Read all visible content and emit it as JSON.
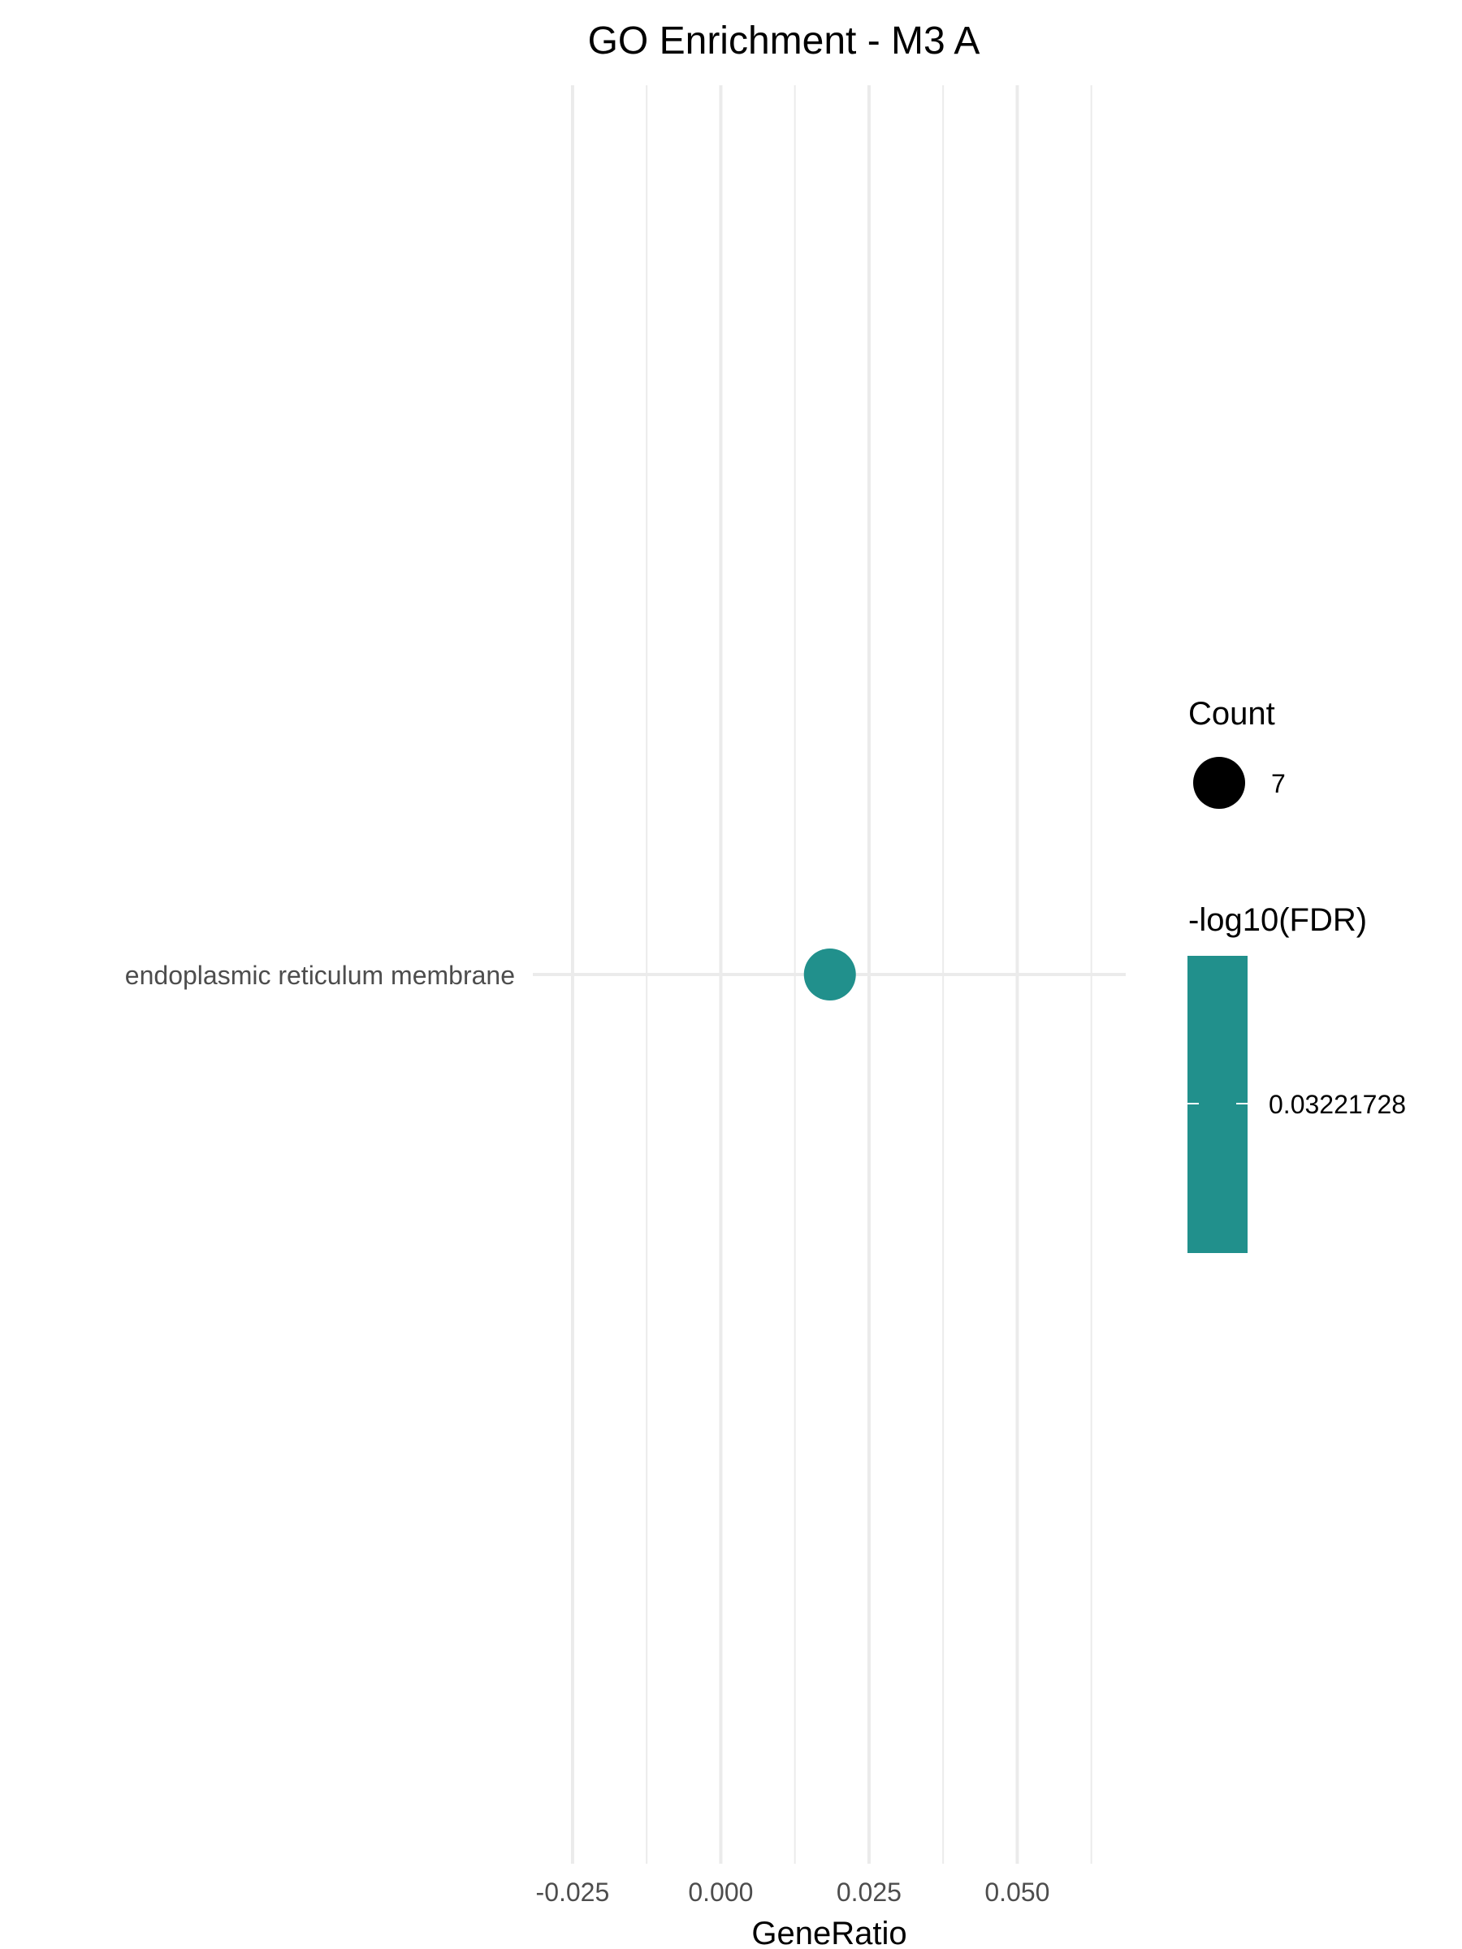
{
  "chart_data": {
    "type": "scatter",
    "title": "GO Enrichment - M3 A",
    "xlabel": "GeneRatio",
    "ylabel": "",
    "xlim": [
      -0.0317,
      0.0683
    ],
    "x_ticks": [
      -0.025,
      0.0,
      0.025,
      0.05
    ],
    "x_tick_labels": [
      "-0.025",
      "0.000",
      "0.025",
      "0.050"
    ],
    "categories": [
      "endoplasmic reticulum membrane"
    ],
    "points": [
      {
        "term": "endoplasmic reticulum membrane",
        "gene_ratio": 0.0184,
        "count": 7,
        "neg_log10_fdr": 0.03221728
      }
    ],
    "grid": true,
    "legend_position": "right",
    "legend": {
      "size": {
        "title": "Count",
        "labels": [
          "7"
        ]
      },
      "color": {
        "title": "-log10(FDR)",
        "labels": [
          "0.03221728"
        ]
      }
    },
    "colors": {
      "point": "#21908C",
      "grid": "#EBEBEB",
      "legend_dot": "#000000"
    }
  }
}
